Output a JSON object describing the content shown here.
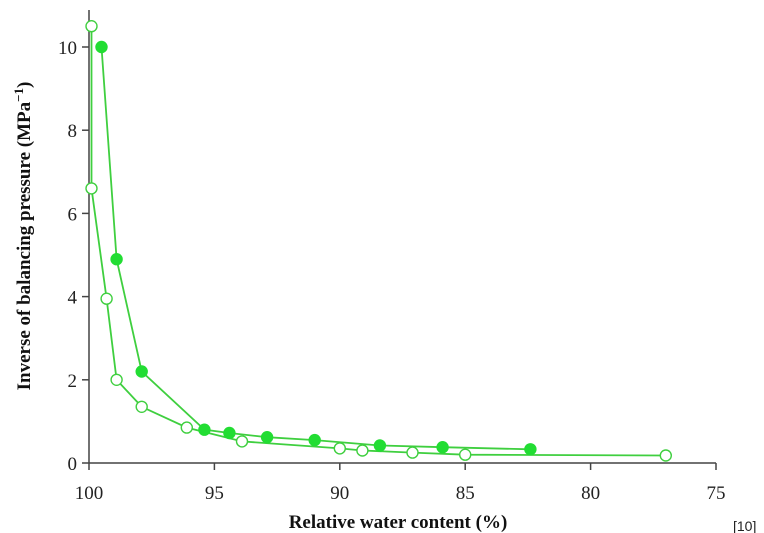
{
  "chart_data": {
    "type": "line",
    "xlabel": "Relative water content (%)",
    "ylabel_main": "Inverse of balancing pressure (MPa",
    "ylabel_sup": "−1",
    "ylabel_close": ")",
    "xlim": [
      100,
      75
    ],
    "ylim": [
      0,
      11
    ],
    "xticks": [
      100,
      95,
      90,
      85,
      80,
      75
    ],
    "yticks": [
      0,
      2,
      4,
      6,
      8,
      10
    ],
    "grid": false,
    "reference": "[10]",
    "line_color": "#3fcf3f",
    "marker_color": "#22dd33",
    "series": [
      {
        "marker": "filled-circle",
        "x": [
          99.5,
          98.9,
          97.9,
          95.4,
          94.4,
          92.9,
          91.0,
          88.4,
          85.9,
          82.4
        ],
        "y": [
          10.0,
          4.9,
          2.2,
          0.8,
          0.72,
          0.62,
          0.55,
          0.42,
          0.38,
          0.33
        ]
      },
      {
        "marker": "open-circle",
        "x": [
          99.9,
          99.9,
          99.3,
          98.9,
          97.9,
          96.1,
          93.9,
          90.0,
          89.1,
          87.1,
          85.0,
          77.0
        ],
        "y": [
          10.5,
          6.6,
          3.95,
          2.0,
          1.35,
          0.85,
          0.52,
          0.35,
          0.3,
          0.25,
          0.2,
          0.18
        ]
      }
    ]
  }
}
